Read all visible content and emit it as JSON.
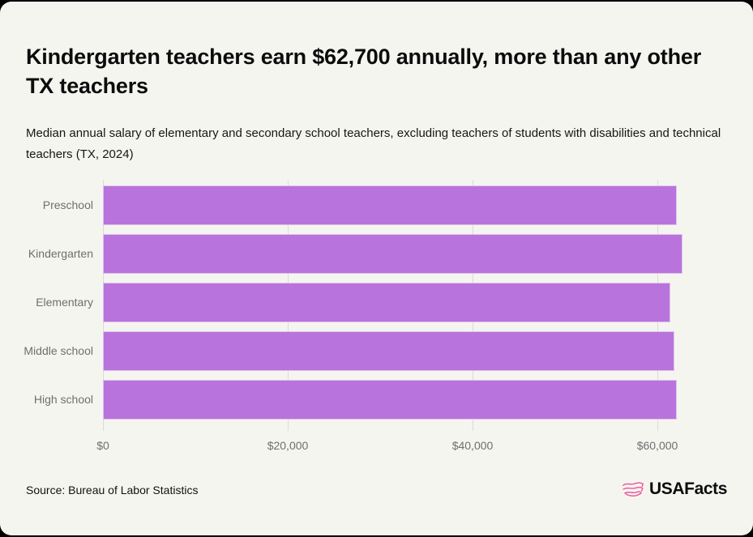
{
  "page": {
    "outer_background": "#000000",
    "card_background": "#f5f5f0"
  },
  "chart_data": {
    "type": "bar",
    "orientation": "horizontal",
    "title": "Kindergarten teachers earn $62,700 annually, more than any other TX teachers",
    "subtitle": "Median annual salary of elementary and secondary school teachers, excluding teachers of students with disabilities and technical teachers (TX, 2024)",
    "categories": [
      "Preschool",
      "Kindergarten",
      "Elementary",
      "Middle school",
      "High school"
    ],
    "values": [
      62100,
      62700,
      61400,
      61850,
      62100
    ],
    "x_ticks": [
      "$0",
      "$20,000",
      "$40,000",
      "$60,000"
    ],
    "x_tick_values": [
      0,
      20000,
      40000,
      60000
    ],
    "xlim": [
      0,
      65000
    ],
    "bar_color": "#b873dc",
    "grid": true,
    "gridline_color": "#dcdad4",
    "legend": false,
    "label_color": "#6e6e6e"
  },
  "footer": {
    "source": "Source: Bureau of Labor Statistics",
    "logo_text": "USAFacts",
    "logo_pink": "#ee5a9e"
  }
}
